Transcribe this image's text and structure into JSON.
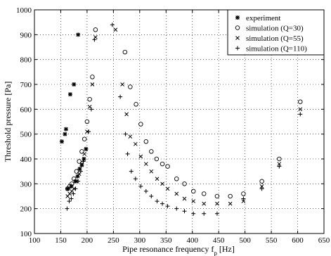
{
  "chart_data": {
    "type": "scatter",
    "title": "",
    "xlabel": "Pipe resonance frequency f",
    "xlabel_sub": "p",
    "xlabel_unit": " [Hz]",
    "ylabel": "Threshold pressure [Pa]",
    "xlim": [
      100,
      650
    ],
    "ylim": [
      100,
      1000
    ],
    "xticks": [
      100,
      150,
      200,
      250,
      300,
      350,
      400,
      450,
      500,
      550,
      600,
      650
    ],
    "yticks": [
      100,
      200,
      300,
      400,
      500,
      600,
      700,
      800,
      900,
      1000
    ],
    "grid": true,
    "legend_position": "top-right",
    "series": [
      {
        "name": "experiment",
        "marker": "asterisk",
        "points": [
          [
            152,
            470
          ],
          [
            158,
            500
          ],
          [
            160,
            520
          ],
          [
            168,
            660
          ],
          [
            175,
            700
          ],
          [
            183,
            900
          ],
          [
            163,
            280
          ],
          [
            170,
            290
          ],
          [
            178,
            310
          ],
          [
            182,
            330
          ],
          [
            186,
            360
          ],
          [
            190,
            375
          ],
          [
            194,
            400
          ],
          [
            198,
            440
          ]
        ]
      },
      {
        "name": "simulation (Q=30)",
        "marker": "circle",
        "points": [
          [
            163,
            280
          ],
          [
            167,
            290
          ],
          [
            171,
            300
          ],
          [
            175,
            320
          ],
          [
            180,
            350
          ],
          [
            185,
            390
          ],
          [
            190,
            430
          ],
          [
            195,
            480
          ],
          [
            200,
            550
          ],
          [
            205,
            640
          ],
          [
            210,
            730
          ],
          [
            216,
            920
          ],
          [
            272,
            830
          ],
          [
            282,
            690
          ],
          [
            293,
            620
          ],
          [
            302,
            540
          ],
          [
            312,
            470
          ],
          [
            322,
            430
          ],
          [
            332,
            400
          ],
          [
            343,
            380
          ],
          [
            353,
            370
          ],
          [
            370,
            320
          ],
          [
            385,
            300
          ],
          [
            402,
            270
          ],
          [
            422,
            260
          ],
          [
            447,
            250
          ],
          [
            472,
            250
          ],
          [
            497,
            260
          ],
          [
            532,
            310
          ],
          [
            565,
            400
          ],
          [
            605,
            630
          ]
        ]
      },
      {
        "name": "simulation (Q=55)",
        "marker": "x",
        "points": [
          [
            163,
            250
          ],
          [
            167,
            260
          ],
          [
            171,
            270
          ],
          [
            175,
            280
          ],
          [
            180,
            310
          ],
          [
            185,
            340
          ],
          [
            190,
            380
          ],
          [
            195,
            420
          ],
          [
            200,
            510
          ],
          [
            205,
            610
          ],
          [
            210,
            700
          ],
          [
            216,
            890
          ],
          [
            254,
            920
          ],
          [
            267,
            700
          ],
          [
            275,
            580
          ],
          [
            282,
            490
          ],
          [
            292,
            460
          ],
          [
            302,
            410
          ],
          [
            312,
            380
          ],
          [
            322,
            350
          ],
          [
            333,
            320
          ],
          [
            343,
            300
          ],
          [
            353,
            280
          ],
          [
            370,
            260
          ],
          [
            385,
            240
          ],
          [
            402,
            230
          ],
          [
            422,
            220
          ],
          [
            447,
            220
          ],
          [
            472,
            220
          ],
          [
            497,
            230
          ],
          [
            532,
            290
          ],
          [
            565,
            380
          ],
          [
            605,
            600
          ]
        ]
      },
      {
        "name": "simulation (Q=110)",
        "marker": "plus",
        "points": [
          [
            162,
            200
          ],
          [
            166,
            230
          ],
          [
            170,
            240
          ],
          [
            174,
            260
          ],
          [
            178,
            280
          ],
          [
            183,
            310
          ],
          [
            188,
            350
          ],
          [
            193,
            390
          ],
          [
            198,
            440
          ],
          [
            203,
            510
          ],
          [
            208,
            600
          ],
          [
            214,
            880
          ],
          [
            248,
            940
          ],
          [
            263,
            650
          ],
          [
            273,
            500
          ],
          [
            277,
            420
          ],
          [
            284,
            350
          ],
          [
            292,
            320
          ],
          [
            302,
            290
          ],
          [
            312,
            270
          ],
          [
            322,
            250
          ],
          [
            333,
            230
          ],
          [
            343,
            220
          ],
          [
            353,
            210
          ],
          [
            370,
            200
          ],
          [
            385,
            190
          ],
          [
            402,
            180
          ],
          [
            422,
            180
          ],
          [
            447,
            180
          ],
          [
            497,
            240
          ],
          [
            532,
            280
          ],
          [
            565,
            370
          ],
          [
            605,
            580
          ]
        ]
      }
    ]
  }
}
